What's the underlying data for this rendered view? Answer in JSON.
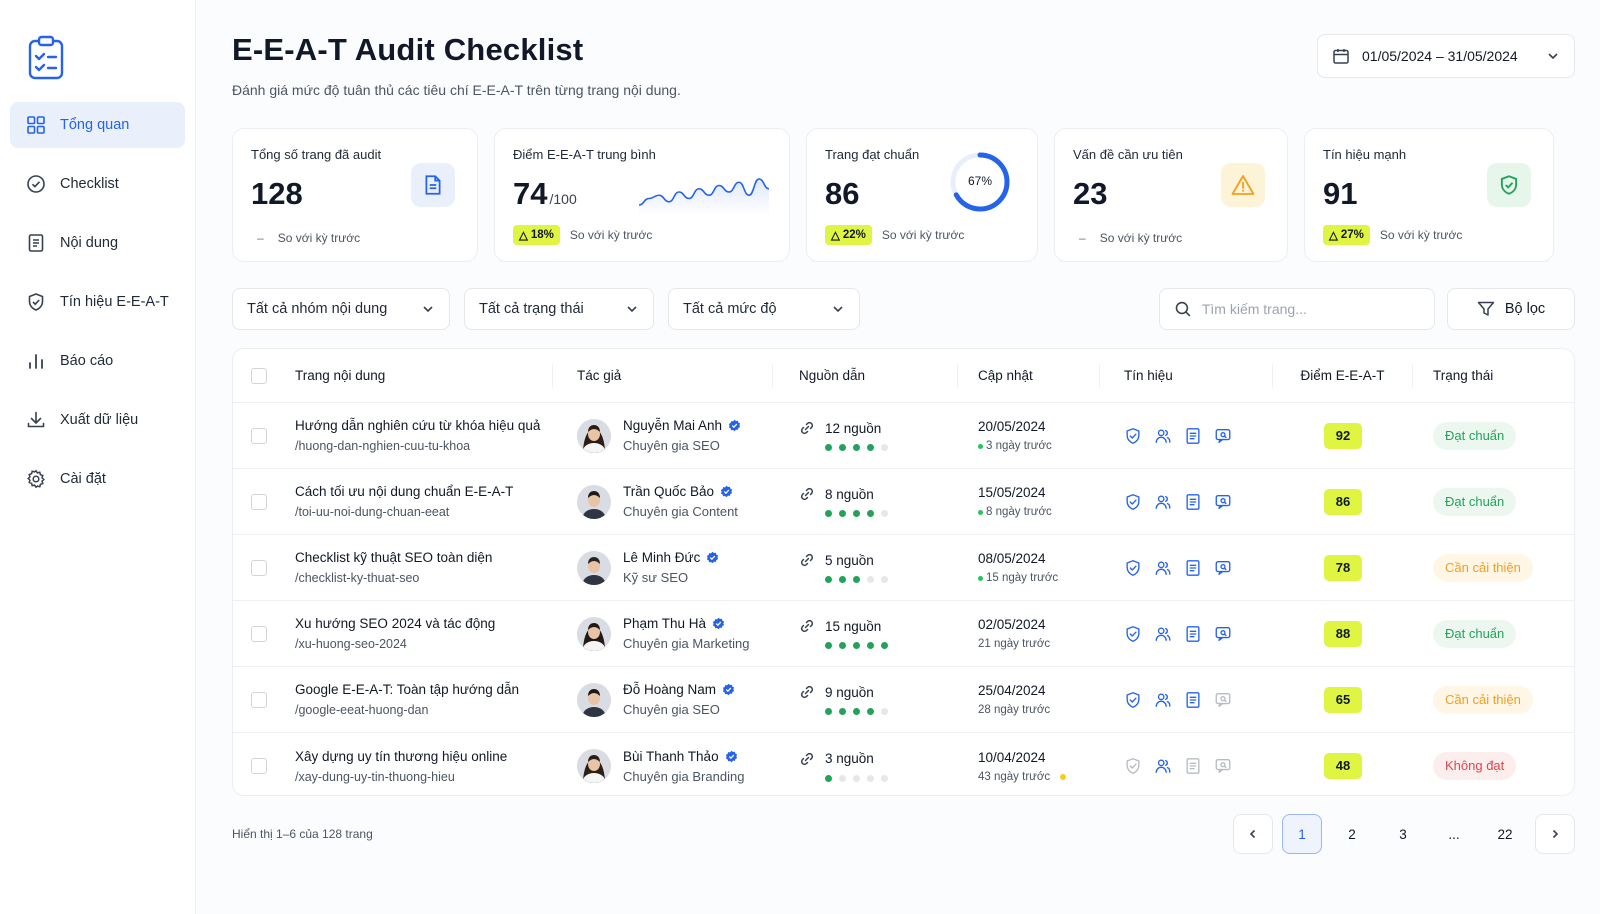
{
  "sidebar": {
    "logo_icon": "clipboard-check-icon",
    "items": [
      {
        "label": "Tổng quan",
        "icon": "grid-icon",
        "active": true
      },
      {
        "label": "Checklist",
        "icon": "check-circle-icon"
      },
      {
        "label": "Nội dung",
        "icon": "document-icon"
      },
      {
        "label": "Tín hiệu E-E-A-T",
        "icon": "shield-check-icon"
      },
      {
        "label": "Báo cáo",
        "icon": "bar-chart-icon"
      },
      {
        "label": "Xuất dữ liệu",
        "icon": "download-icon"
      },
      {
        "label": "Cài đặt",
        "icon": "gear-icon"
      }
    ]
  },
  "header": {
    "title": "E-E-A-T Audit Checklist",
    "subtitle": "Đánh giá mức độ tuân thủ các tiêu chí E-E-A-T trên từng trang nội dung.",
    "date_range": "01/05/2024 – 31/05/2024"
  },
  "stats": [
    {
      "label": "Tổng số trang đã audit",
      "value": "128",
      "change": "–",
      "compare": "So với kỳ trước",
      "icon": "document-icon"
    },
    {
      "label": "Điểm E-E-A-T trung bình",
      "value": "74",
      "suffix": "/100",
      "change": "18%",
      "compare": "So với kỳ trước",
      "sparkline": [
        9,
        7,
        6,
        8,
        5,
        7,
        4,
        6,
        3,
        5,
        2,
        6,
        1,
        4
      ]
    },
    {
      "label": "Trang đạt chuẩn",
      "value": "86",
      "change": "22%",
      "compare": "So với kỳ trước",
      "ring_label": "67%",
      "ring_value": 0.67
    },
    {
      "label": "Vấn đề cần ưu tiên",
      "value": "23",
      "change": "–",
      "compare": "So với kỳ trước",
      "icon": "warning-icon"
    },
    {
      "label": "Tín hiệu mạnh",
      "value": "91",
      "change": "27%",
      "compare": "So với kỳ trước",
      "icon": "shield-check-icon"
    }
  ],
  "filters": {
    "group": "Tất cả nhóm nội dung",
    "status": "Tất cả trạng thái",
    "level": "Tất cả mức độ",
    "search_placeholder": "Tìm kiếm trang...",
    "filter_button": "Bộ lọc"
  },
  "table": {
    "columns": [
      "Trang nội dung",
      "Tác giả",
      "Nguồn dẫn",
      "Cập nhật",
      "Tín hiệu",
      "Điểm E-E-A-T",
      "Trạng thái"
    ],
    "rows": [
      {
        "title": "Hướng dẫn nghiên cứu từ khóa hiệu quả",
        "slug": "/huong-dan-nghien-cuu-tu-khoa",
        "author": "Nguyễn Mai Anh",
        "role": "Chuyên gia SEO",
        "sources": "12 nguồn",
        "source_level": 4,
        "date": "20/05/2024",
        "ago": "3 ngày trước",
        "ago_dot": "green",
        "signals": [
          true,
          true,
          true,
          true
        ],
        "score": "92",
        "status": "Đạt chuẩn",
        "status_type": "ok"
      },
      {
        "title": "Cách tối ưu nội dung chuẩn E-E-A-T",
        "slug": "/toi-uu-noi-dung-chuan-eeat",
        "author": "Trần Quốc Bảo",
        "role": "Chuyên gia Content",
        "sources": "8 nguồn",
        "source_level": 4,
        "date": "15/05/2024",
        "ago": "8 ngày trước",
        "ago_dot": "green",
        "signals": [
          true,
          true,
          true,
          true
        ],
        "score": "86",
        "status": "Đạt chuẩn",
        "status_type": "ok"
      },
      {
        "title": "Checklist kỹ thuật SEO toàn diện",
        "slug": "/checklist-ky-thuat-seo",
        "author": "Lê Minh Đức",
        "role": "Kỹ sư SEO",
        "sources": "5 nguồn",
        "source_level": 3,
        "date": "08/05/2024",
        "ago": "15 ngày trước",
        "ago_dot": "green",
        "signals": [
          true,
          true,
          true,
          true
        ],
        "score": "78",
        "status": "Cần cải thiện",
        "status_type": "imp"
      },
      {
        "title": "Xu hướng SEO 2024 và tác động",
        "slug": "/xu-huong-seo-2024",
        "author": "Phạm Thu Hà",
        "role": "Chuyên gia Marketing",
        "sources": "15 nguồn",
        "source_level": 5,
        "date": "02/05/2024",
        "ago": "21 ngày trước",
        "ago_dot": "",
        "signals": [
          true,
          true,
          true,
          true
        ],
        "score": "88",
        "status": "Đạt chuẩn",
        "status_type": "ok"
      },
      {
        "title": "Google E-E-A-T: Toàn tập hướng dẫn",
        "slug": "/google-eeat-huong-dan",
        "author": "Đỗ Hoàng Nam",
        "role": "Chuyên gia SEO",
        "sources": "9 nguồn",
        "source_level": 4,
        "date": "25/04/2024",
        "ago": "28 ngày trước",
        "ago_dot": "",
        "signals": [
          true,
          true,
          true,
          false
        ],
        "score": "65",
        "status": "Cần cải thiện",
        "status_type": "imp"
      },
      {
        "title": "Xây dựng uy tín thương hiệu online",
        "slug": "/xay-dung-uy-tin-thuong-hieu",
        "author": "Bùi Thanh Thảo",
        "role": "Chuyên gia Branding",
        "sources": "3 nguồn",
        "source_level": 1,
        "date": "10/04/2024",
        "ago": "43 ngày trước",
        "ago_dot": "yellow",
        "signals": [
          false,
          true,
          false,
          false
        ],
        "score": "48",
        "status": "Không đạt",
        "status_type": "bad"
      }
    ]
  },
  "footer": {
    "showing": "Hiển thị 1–6 của 128 trang",
    "pages": [
      "1",
      "2",
      "3",
      "...",
      "22"
    ],
    "current_page": "1"
  },
  "colors": {
    "accent": "#2563eb",
    "lime": "#dff542",
    "success": "#22a35a",
    "warning": "#f0a020",
    "danger": "#e0454f"
  }
}
